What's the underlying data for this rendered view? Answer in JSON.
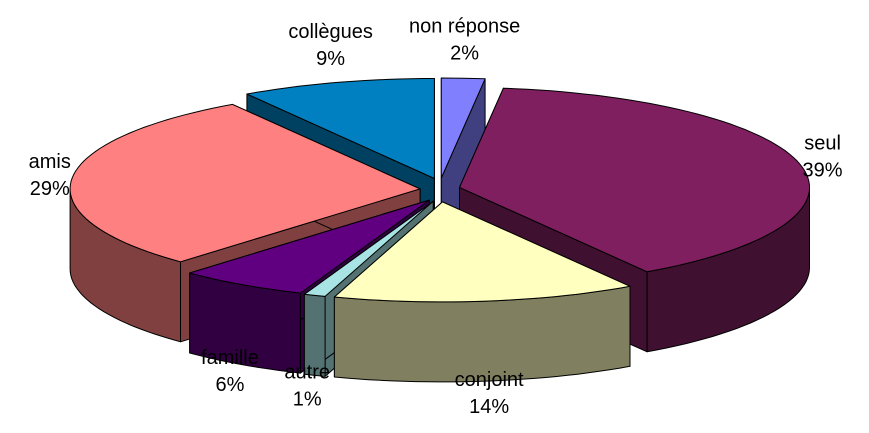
{
  "chart_data": {
    "type": "pie3d",
    "categories": [
      "non réponse",
      "seul",
      "conjoint",
      "autre",
      "famille",
      "amis",
      "collègues"
    ],
    "values": [
      2,
      39,
      14,
      1,
      6,
      29,
      9
    ],
    "value_labels": [
      "2%",
      "39%",
      "14%",
      "1%",
      "6%",
      "29%",
      "9%"
    ],
    "colors": [
      "#8080ff",
      "#7f1f5f",
      "#ffffc0",
      "#a8e4e4",
      "#600080",
      "#ff8080",
      "#0080c0"
    ]
  }
}
